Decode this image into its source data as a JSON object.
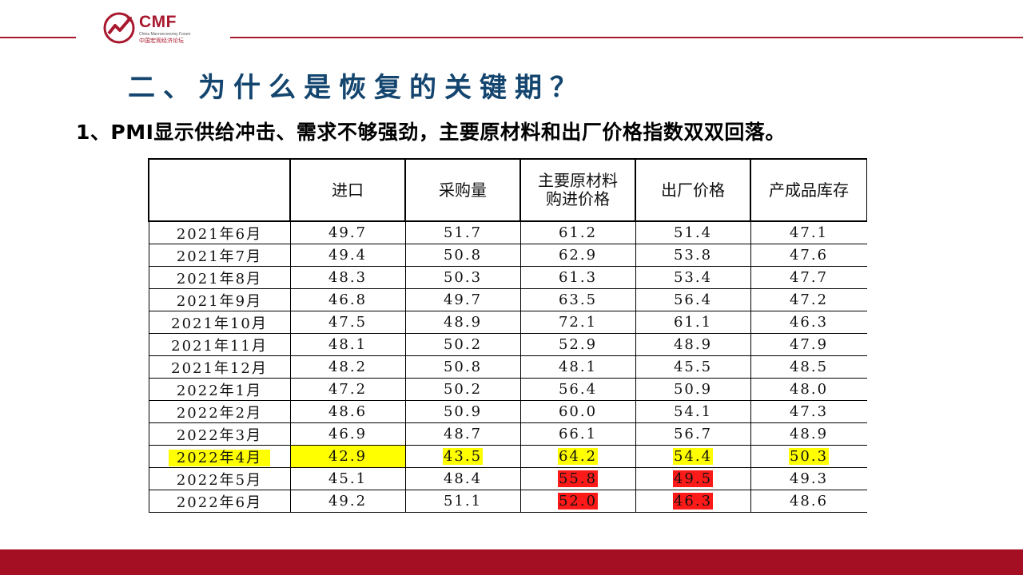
{
  "logo": {
    "text": "CMF",
    "subtitle_en": "China Macroeconomy Forum",
    "subtitle_cn": "中国宏观经济论坛"
  },
  "title": "二、为什么是恢复的关键期？",
  "subtitle": "1、PMI显示供给冲击、需求不够强劲，主要原材料和出厂价格指数双双回落。",
  "table": {
    "headers": [
      "",
      "进口",
      "采购量",
      "主要原材料购进价格",
      "出厂价格",
      "产成品库存"
    ],
    "rows": [
      {
        "month": "2021年6月",
        "values": [
          "49.7",
          "51.7",
          "61.2",
          "51.4",
          "47.1"
        ]
      },
      {
        "month": "2021年7月",
        "values": [
          "49.4",
          "50.8",
          "62.9",
          "53.8",
          "47.6"
        ]
      },
      {
        "month": "2021年8月",
        "values": [
          "48.3",
          "50.3",
          "61.3",
          "53.4",
          "47.7"
        ]
      },
      {
        "month": "2021年9月",
        "values": [
          "46.8",
          "49.7",
          "63.5",
          "56.4",
          "47.2"
        ]
      },
      {
        "month": "2021年10月",
        "values": [
          "47.5",
          "48.9",
          "72.1",
          "61.1",
          "46.3"
        ]
      },
      {
        "month": "2021年11月",
        "values": [
          "48.1",
          "50.2",
          "52.9",
          "48.9",
          "47.9"
        ]
      },
      {
        "month": "2021年12月",
        "values": [
          "48.2",
          "50.8",
          "48.1",
          "45.5",
          "48.5"
        ]
      },
      {
        "month": "2022年1月",
        "values": [
          "47.2",
          "50.2",
          "56.4",
          "50.9",
          "48.0"
        ]
      },
      {
        "month": "2022年2月",
        "values": [
          "48.6",
          "50.9",
          "60.0",
          "54.1",
          "47.3"
        ]
      },
      {
        "month": "2022年3月",
        "values": [
          "46.9",
          "48.7",
          "66.1",
          "56.7",
          "48.9"
        ]
      },
      {
        "month": "2022年4月",
        "values": [
          "42.9",
          "43.5",
          "64.2",
          "54.4",
          "50.3"
        ]
      },
      {
        "month": "2022年5月",
        "values": [
          "45.1",
          "48.4",
          "55.8",
          "49.5",
          "49.3"
        ]
      },
      {
        "month": "2022年6月",
        "values": [
          "49.2",
          "51.1",
          "52.0",
          "46.3",
          "48.6"
        ]
      }
    ]
  },
  "colors": {
    "brand_red": "#a8182e",
    "title_blue": "#13456f",
    "highlight_yellow": "#ffff00",
    "highlight_red": "#ff1a1a"
  }
}
